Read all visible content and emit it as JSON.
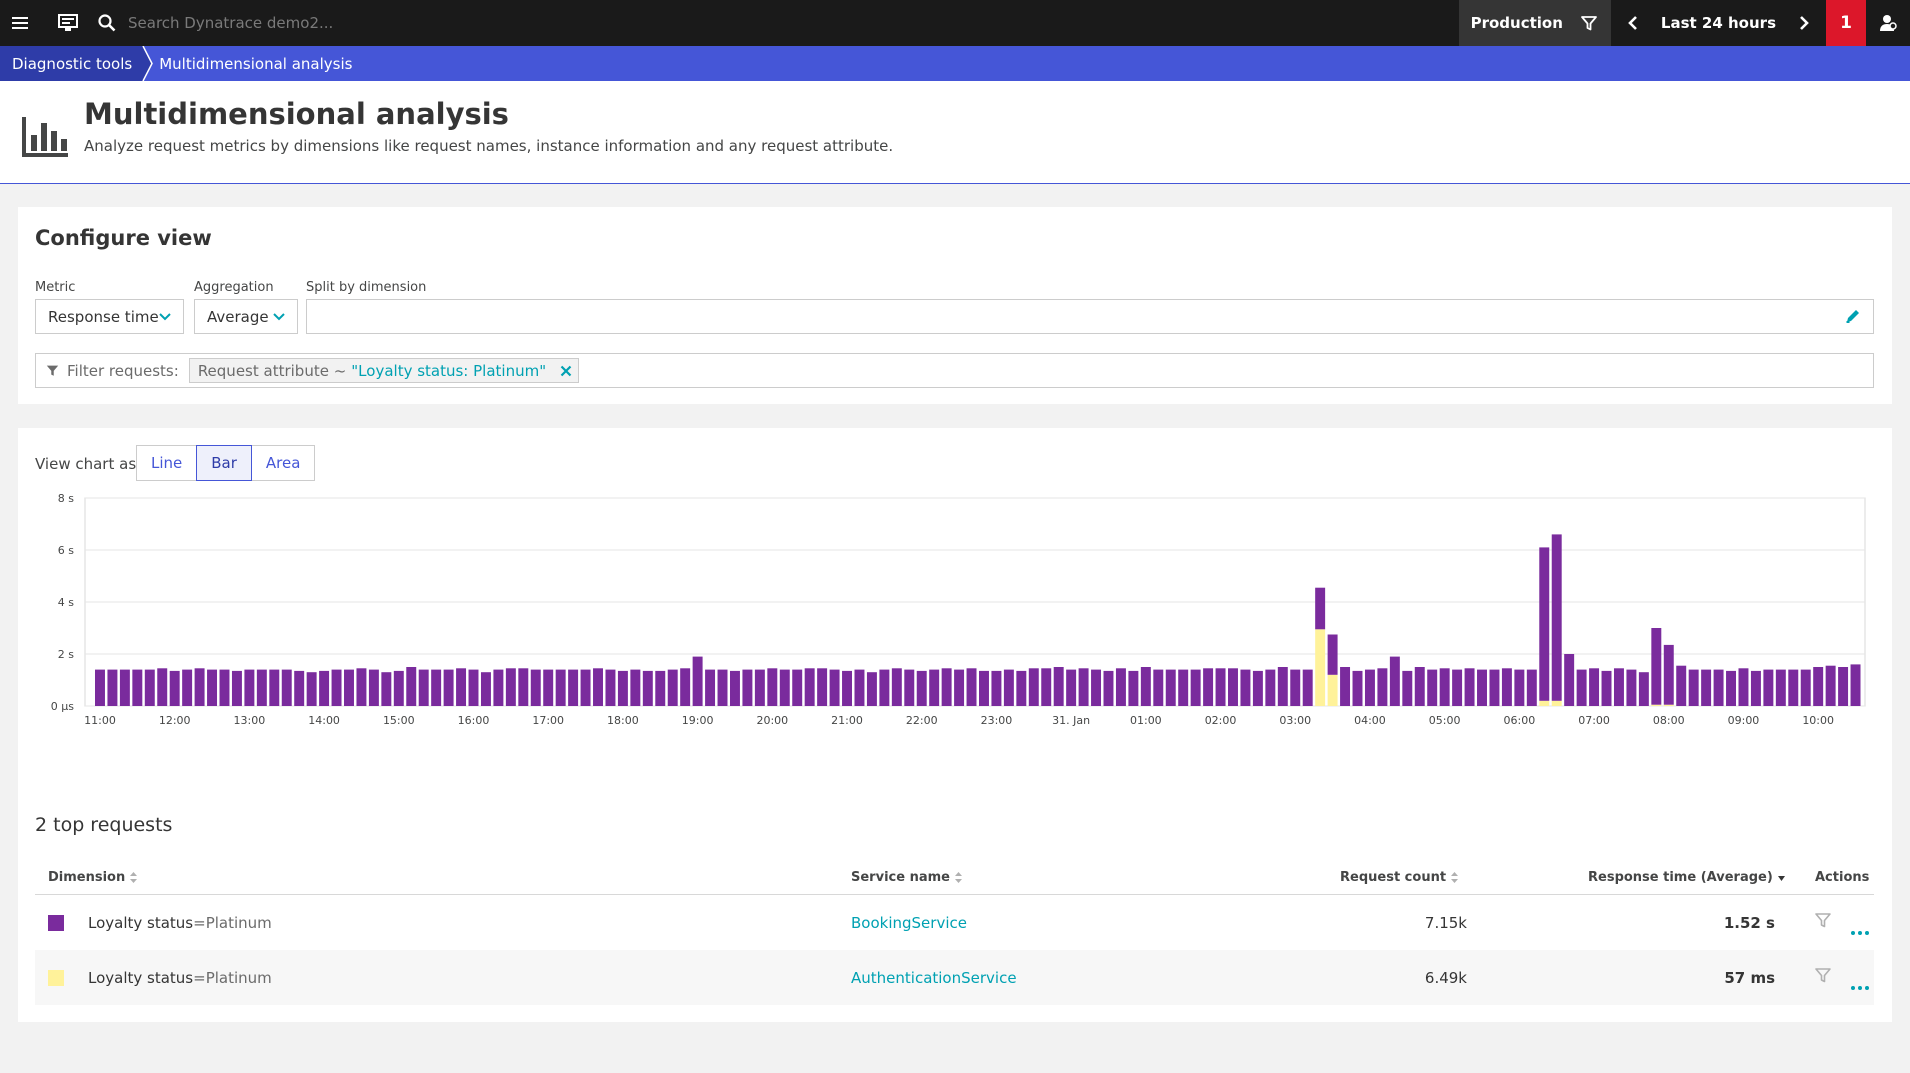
{
  "topbar": {
    "search_placeholder": "Search Dynatrace demo2...",
    "environment": "Production",
    "timeframe": "Last 24 hours",
    "problem_count": "1"
  },
  "breadcrumb": {
    "items": [
      "Diagnostic tools",
      "Multidimensional analysis"
    ]
  },
  "header": {
    "title": "Multidimensional analysis",
    "subtitle": "Analyze request metrics by dimensions like request names, instance information and any request attribute."
  },
  "configure": {
    "title": "Configure view",
    "metric_label": "Metric",
    "metric_value": "Response time",
    "aggregation_label": "Aggregation",
    "aggregation_value": "Average",
    "split_label": "Split by dimension",
    "split_value": "",
    "filter_label": "Filter requests:",
    "filter_key": "Request attribute ~",
    "filter_value": "\"Loyalty status: Platinum\""
  },
  "chart_view": {
    "label": "View chart as:",
    "options": [
      "Line",
      "Bar",
      "Area"
    ],
    "selected": "Bar"
  },
  "chart_data": {
    "type": "bar",
    "stacked": true,
    "y_ticks": [
      "0 µs",
      "2 s",
      "4 s",
      "6 s",
      "8 s"
    ],
    "ylim": [
      0,
      8
    ],
    "y_unit": "s",
    "x_tick_labels": [
      "11:00",
      "12:00",
      "13:00",
      "14:00",
      "15:00",
      "16:00",
      "17:00",
      "18:00",
      "19:00",
      "20:00",
      "21:00",
      "22:00",
      "23:00",
      "31. Jan",
      "01:00",
      "02:00",
      "03:00",
      "04:00",
      "05:00",
      "06:00",
      "07:00",
      "08:00",
      "09:00",
      "10:00"
    ],
    "x_tick_bar_index": [
      0,
      6,
      12,
      18,
      24,
      30,
      36,
      42,
      48,
      54,
      60,
      66,
      72,
      78,
      84,
      90,
      96,
      102,
      108,
      114,
      120,
      126,
      132,
      138
    ],
    "colors": {
      "platinum_booking": "#7a2b9d",
      "platinum_auth": "#fff29a"
    },
    "series": [
      {
        "dimension": "Loyalty status=Platinum (BookingService)",
        "color": "#7a2b9d",
        "values": [
          1.4,
          1.4,
          1.4,
          1.4,
          1.4,
          1.45,
          1.35,
          1.4,
          1.45,
          1.4,
          1.4,
          1.35,
          1.4,
          1.4,
          1.4,
          1.4,
          1.35,
          1.3,
          1.35,
          1.4,
          1.4,
          1.45,
          1.4,
          1.3,
          1.35,
          1.5,
          1.4,
          1.4,
          1.4,
          1.45,
          1.4,
          1.3,
          1.4,
          1.45,
          1.45,
          1.4,
          1.4,
          1.4,
          1.4,
          1.4,
          1.45,
          1.4,
          1.35,
          1.4,
          1.35,
          1.35,
          1.4,
          1.45,
          1.9,
          1.4,
          1.4,
          1.35,
          1.4,
          1.4,
          1.45,
          1.4,
          1.4,
          1.45,
          1.45,
          1.4,
          1.35,
          1.4,
          1.3,
          1.4,
          1.45,
          1.4,
          1.35,
          1.4,
          1.45,
          1.4,
          1.45,
          1.35,
          1.35,
          1.4,
          1.35,
          1.45,
          1.45,
          1.5,
          1.4,
          1.45,
          1.4,
          1.35,
          1.45,
          1.35,
          1.5,
          1.4,
          1.4,
          1.4,
          1.4,
          1.45,
          1.45,
          1.45,
          1.4,
          1.35,
          1.4,
          1.5,
          1.4,
          1.4,
          1.6,
          1.55,
          1.5,
          1.35,
          1.4,
          1.45,
          1.9,
          1.35,
          1.5,
          1.4,
          1.45,
          1.4,
          1.45,
          1.4,
          1.4,
          1.45,
          1.4,
          1.4,
          5.9,
          6.4,
          2.0,
          1.4,
          1.45,
          1.35,
          1.45,
          1.4,
          1.3,
          2.95,
          2.3,
          1.55,
          1.4,
          1.4,
          1.4,
          1.35,
          1.45,
          1.35,
          1.4,
          1.4,
          1.4,
          1.4,
          1.5,
          1.55,
          1.5,
          1.6
        ]
      },
      {
        "dimension": "Loyalty status=Platinum (AuthenticationService)",
        "color": "#fff29a",
        "values_sparse": {
          "98": 2.95,
          "99": 1.2,
          "116": 0.2,
          "117": 0.2,
          "125": 0.05,
          "126": 0.05
        }
      }
    ]
  },
  "top_requests": {
    "title": "2 top requests",
    "columns": [
      "Dimension",
      "Service name",
      "Request count",
      "Response time (Average)",
      "Actions"
    ],
    "rows": [
      {
        "dim_key": "Loyalty status",
        "dim_val": "=Platinum",
        "service": "BookingService",
        "count": "7.15k",
        "response": "1.52 s",
        "color": "#7a2b9d"
      },
      {
        "dim_key": "Loyalty status",
        "dim_val": "=Platinum",
        "service": "AuthenticationService",
        "count": "6.49k",
        "response": "57 ms",
        "color": "#fff29a"
      }
    ]
  }
}
